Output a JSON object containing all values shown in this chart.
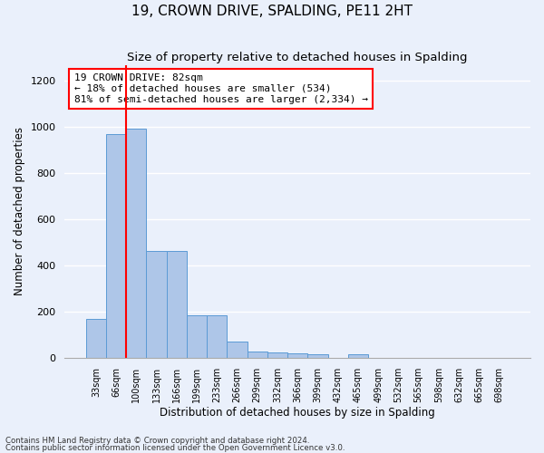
{
  "title": "19, CROWN DRIVE, SPALDING, PE11 2HT",
  "subtitle": "Size of property relative to detached houses in Spalding",
  "xlabel": "Distribution of detached houses by size in Spalding",
  "ylabel": "Number of detached properties",
  "footnote1": "Contains HM Land Registry data © Crown copyright and database right 2024.",
  "footnote2": "Contains public sector information licensed under the Open Government Licence v3.0.",
  "bar_labels": [
    "33sqm",
    "66sqm",
    "100sqm",
    "133sqm",
    "166sqm",
    "199sqm",
    "233sqm",
    "266sqm",
    "299sqm",
    "332sqm",
    "366sqm",
    "399sqm",
    "432sqm",
    "465sqm",
    "499sqm",
    "532sqm",
    "565sqm",
    "598sqm",
    "632sqm",
    "665sqm",
    "698sqm"
  ],
  "bar_values": [
    170,
    970,
    995,
    465,
    465,
    183,
    183,
    70,
    28,
    24,
    20,
    14,
    0,
    14,
    0,
    0,
    0,
    0,
    0,
    0,
    0
  ],
  "bar_color": "#aec6e8",
  "bar_edge_color": "#5b9bd5",
  "red_line_x": 1.5,
  "annotation_text": "19 CROWN DRIVE: 82sqm\n← 18% of detached houses are smaller (534)\n81% of semi-detached houses are larger (2,334) →",
  "ylim": [
    0,
    1270
  ],
  "yticks": [
    0,
    200,
    400,
    600,
    800,
    1000,
    1200
  ],
  "bg_color": "#eaf0fb",
  "grid_color": "#ffffff",
  "title_fontsize": 11,
  "subtitle_fontsize": 9.5
}
